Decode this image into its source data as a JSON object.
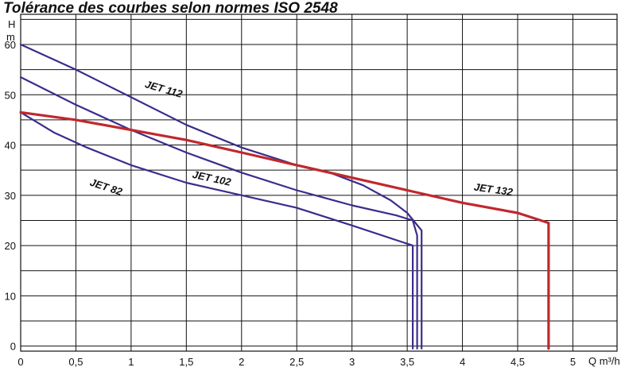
{
  "chart_data": {
    "type": "line",
    "title": "Tolérance des courbes selon normes ISO 2548",
    "ylabel_line1": "H",
    "ylabel_line2": "m",
    "xlabel": "Q m³/h",
    "xlim": [
      0,
      5.4
    ],
    "ylim": [
      -1,
      66
    ],
    "x_ticks": [
      0,
      0.5,
      1,
      1.5,
      2,
      2.5,
      3,
      3.5,
      4,
      4.5,
      5
    ],
    "x_tick_labels": [
      "0",
      "0,5",
      "1",
      "1,5",
      "2",
      "2,5",
      "3",
      "3,5",
      "4",
      "4,5",
      "5"
    ],
    "y_ticks": [
      0,
      10,
      20,
      30,
      40,
      50,
      60
    ],
    "y_tick_labels": [
      "0",
      "10",
      "20",
      "30",
      "40",
      "50",
      "60"
    ],
    "grid": true,
    "series": [
      {
        "name": "JET 82",
        "color": "#3a2d8c",
        "x": [
          0,
          0.3,
          0.6,
          1.0,
          1.5,
          2.0,
          2.5,
          3.0,
          3.55,
          3.55
        ],
        "y": [
          46.5,
          42.5,
          39.5,
          36,
          32.5,
          30,
          27.5,
          24,
          20,
          -0.5
        ]
      },
      {
        "name": "JET 102",
        "color": "#3a2d8c",
        "x": [
          0,
          0.5,
          1.0,
          1.5,
          2.0,
          2.5,
          3.0,
          3.4,
          3.55,
          3.59,
          3.59
        ],
        "y": [
          53.5,
          48,
          43,
          38.5,
          34.5,
          31,
          28,
          26,
          25,
          22,
          -0.5
        ]
      },
      {
        "name": "JET 112",
        "color": "#3a2d8c",
        "x": [
          0,
          0.5,
          1.0,
          1.5,
          2.0,
          2.5,
          2.8,
          3.1,
          3.35,
          3.5,
          3.63,
          3.63
        ],
        "y": [
          60,
          55,
          49.5,
          44,
          39.5,
          36,
          34.5,
          32,
          29,
          26.5,
          23,
          -0.5
        ]
      },
      {
        "name": "JET 132",
        "color": "#c0282d",
        "x": [
          0,
          0.5,
          1.0,
          1.5,
          2.0,
          2.5,
          3.0,
          3.5,
          4.0,
          4.5,
          4.78,
          4.78
        ],
        "y": [
          46.5,
          45,
          43,
          41,
          38.5,
          36,
          33.5,
          31,
          28.5,
          26.5,
          24.5,
          -0.5
        ]
      }
    ]
  }
}
